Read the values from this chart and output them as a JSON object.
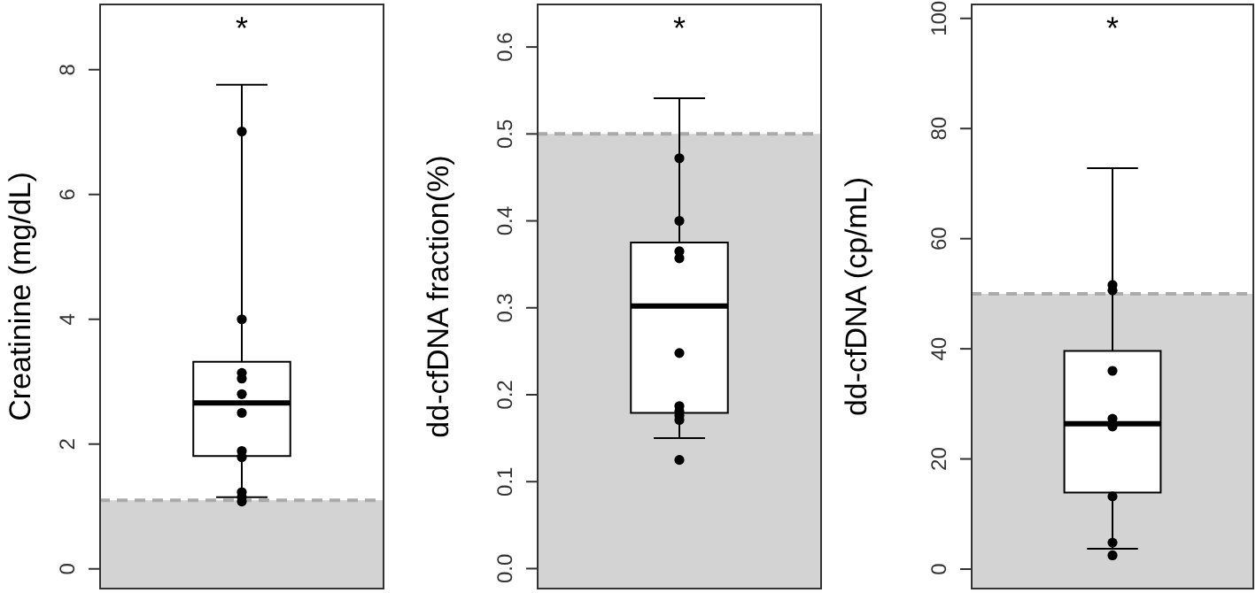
{
  "chart_data": [
    {
      "type": "box",
      "ylabel": "Creatinine (mg/dL)",
      "categories": [
        null
      ],
      "ylim": [
        -0.33,
        9.06
      ],
      "yticks": [
        0,
        2,
        4,
        6,
        8
      ],
      "tick_labels": "y",
      "grid": false,
      "marker": "circle",
      "boxes": [
        {
          "low": 1.15,
          "q1": 1.81,
          "median": 2.66,
          "q3": 3.32,
          "high": 7.76
        }
      ],
      "series": [
        {
          "type": "scatter",
          "color": "#000000",
          "x": [
            null,
            null,
            null,
            null,
            null,
            null,
            null,
            null,
            null,
            null,
            null
          ],
          "values": [
            7.01,
            4.0,
            3.14,
            3.05,
            2.8,
            2.5,
            1.89,
            1.79,
            1.23,
            1.15,
            1.08
          ]
        }
      ],
      "bands": [
        {
          "axis": "y",
          "from": -0.33,
          "to": 1.1,
          "color": "#d3d3d3"
        }
      ],
      "ref_lines": [
        {
          "axis": "y",
          "value": 1.1,
          "color": "#aaaaaa",
          "line_style": "dashed"
        }
      ],
      "annotations": [
        "*"
      ]
    },
    {
      "type": "box",
      "ylabel": "dd-cfDNA fraction(%)",
      "categories": [
        null
      ],
      "ylim": [
        -0.024,
        0.65
      ],
      "yticks": [
        {
          "value": 0,
          "label": "0.0"
        },
        0.1,
        0.2,
        0.3,
        0.4,
        0.5,
        0.6
      ],
      "tick_labels": "y",
      "grid": false,
      "marker": "circle",
      "boxes": [
        {
          "low": 0.15,
          "q1": 0.179,
          "median": 0.302,
          "q3": 0.375,
          "high": 0.541
        }
      ],
      "series": [
        {
          "type": "scatter",
          "color": "#000000",
          "x": [
            null,
            null,
            null,
            null,
            null,
            null,
            null,
            null,
            null,
            null
          ],
          "values": [
            0.472,
            0.4,
            0.365,
            0.357,
            0.248,
            0.187,
            0.181,
            0.176,
            0.171,
            0.125
          ]
        }
      ],
      "bands": [
        {
          "axis": "y",
          "from": -0.024,
          "to": 0.5,
          "color": "#d3d3d3"
        }
      ],
      "ref_lines": [
        {
          "axis": "y",
          "value": 0.5,
          "color": "#aaaaaa",
          "line_style": "dashed"
        }
      ],
      "annotations": [
        "*"
      ]
    },
    {
      "type": "box",
      "ylabel": "dd-cfDNA (cp/mL)",
      "categories": [
        null
      ],
      "ylim": [
        -3.7,
        102.7
      ],
      "yticks": [
        0,
        20,
        40,
        60,
        80,
        100
      ],
      "tick_labels": "y",
      "grid": false,
      "marker": "circle",
      "boxes": [
        {
          "low": 3.7,
          "q1": 13.9,
          "median": 26.4,
          "q3": 39.6,
          "high": 72.8
        }
      ],
      "series": [
        {
          "type": "scatter",
          "color": "#000000",
          "x": [
            null,
            null,
            null,
            null,
            null,
            null,
            null,
            null
          ],
          "values": [
            51.6,
            50.6,
            36,
            27.3,
            25.9,
            13.2,
            4.8,
            2.5
          ]
        }
      ],
      "bands": [
        {
          "axis": "y",
          "from": -3.7,
          "to": 50,
          "color": "#d3d3d3"
        }
      ],
      "ref_lines": [
        {
          "axis": "y",
          "value": 50,
          "color": "#aaaaaa",
          "line_style": "dashed"
        }
      ],
      "annotations": [
        "*"
      ]
    }
  ]
}
